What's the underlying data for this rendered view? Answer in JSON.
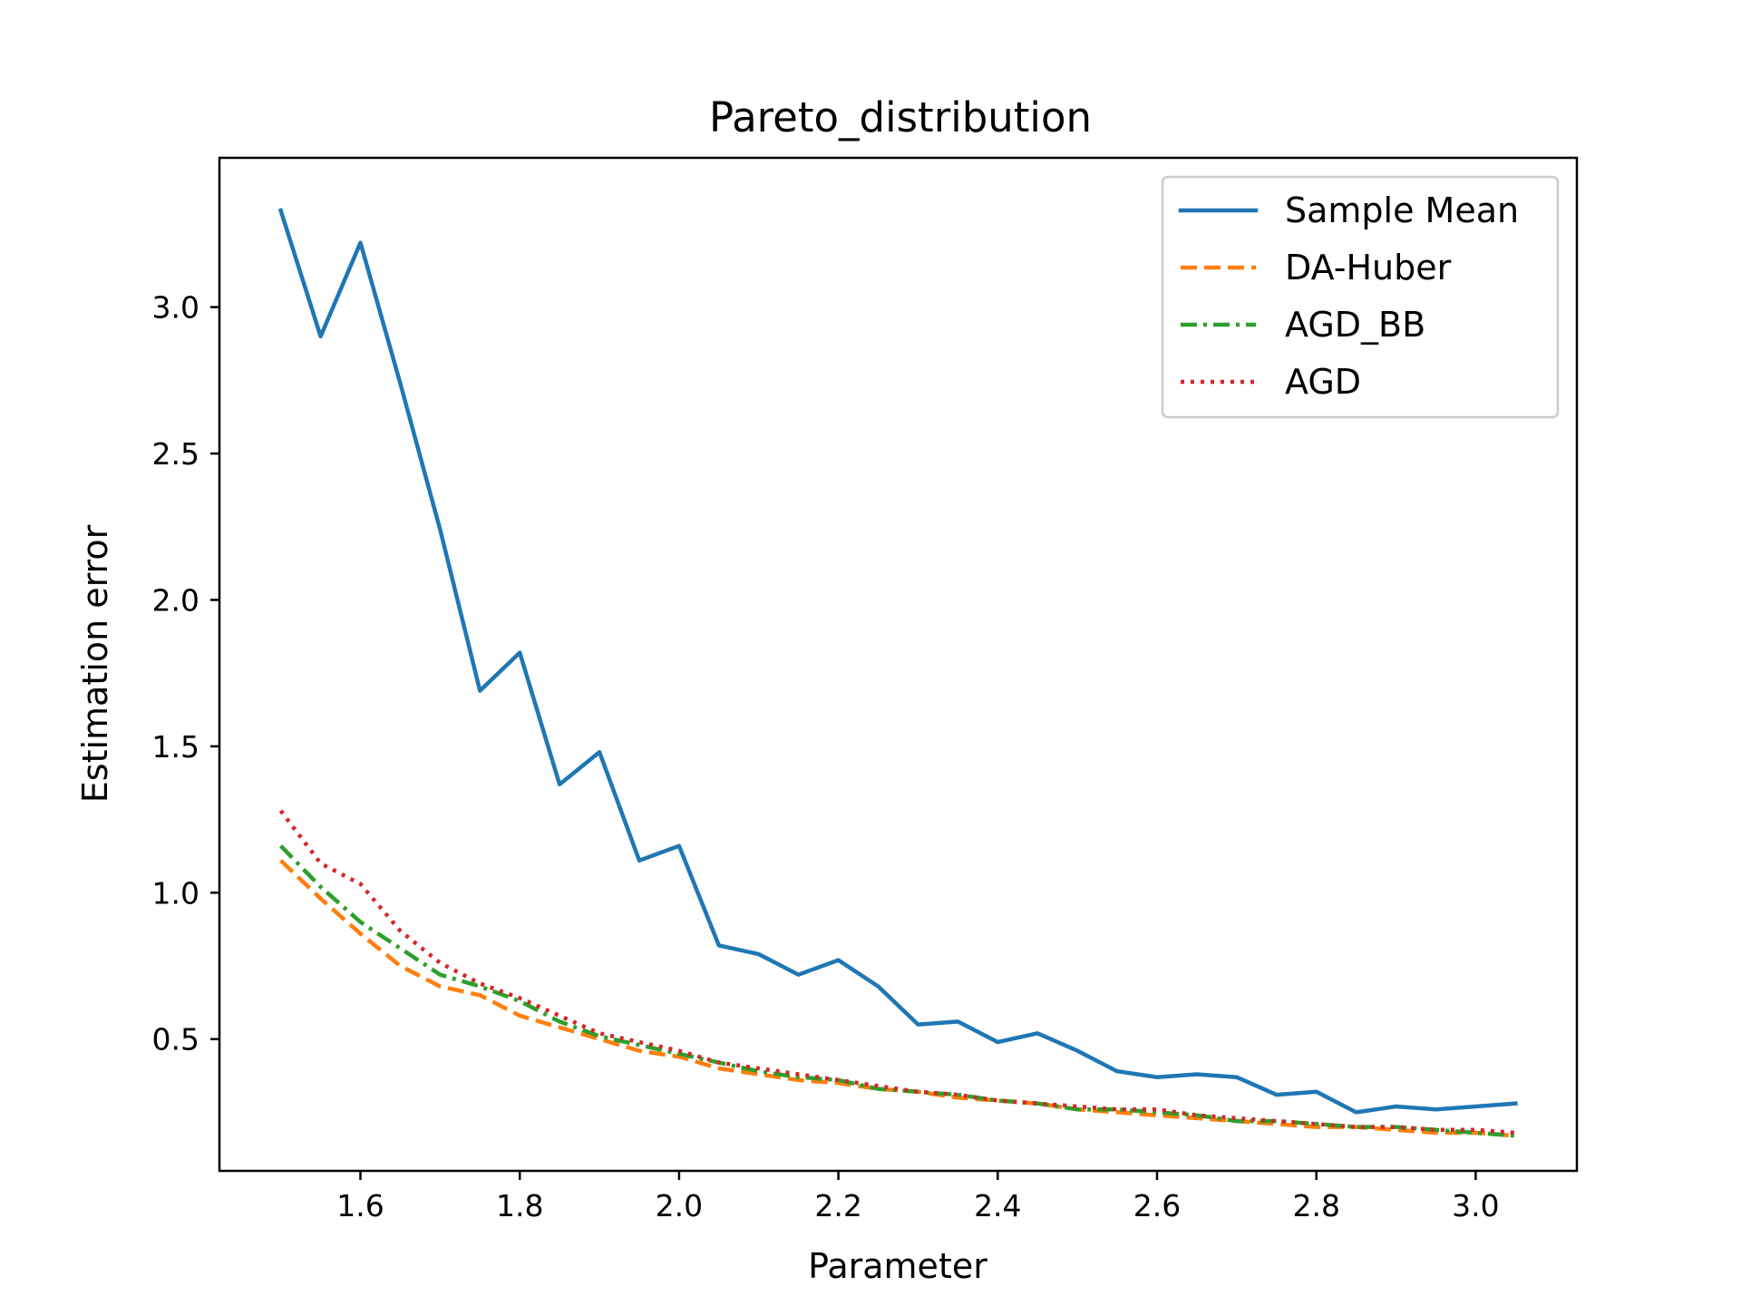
{
  "chart_data": {
    "type": "line",
    "title": "Pareto_distribution",
    "xlabel": "Parameter",
    "ylabel": "Estimation error",
    "xlim": [
      1.423,
      3.127
    ],
    "ylim": [
      0.05,
      3.51
    ],
    "xticks": [
      1.6,
      1.8,
      2.0,
      2.2,
      2.4,
      2.6,
      2.8,
      3.0
    ],
    "xtick_labels": [
      "1.6",
      "1.8",
      "2.0",
      "2.2",
      "2.4",
      "2.6",
      "2.8",
      "3.0"
    ],
    "yticks": [
      0.5,
      1.0,
      1.5,
      2.0,
      2.5,
      3.0
    ],
    "ytick_labels": [
      "0.5",
      "1.0",
      "1.5",
      "2.0",
      "2.5",
      "3.0"
    ],
    "grid": false,
    "legend_position": "top-right",
    "x": [
      1.5,
      1.55,
      1.6,
      1.65,
      1.7,
      1.75,
      1.8,
      1.85,
      1.9,
      1.95,
      2.0,
      2.05,
      2.1,
      2.15,
      2.2,
      2.25,
      2.3,
      2.35,
      2.4,
      2.45,
      2.5,
      2.55,
      2.6,
      2.65,
      2.7,
      2.75,
      2.8,
      2.85,
      2.9,
      2.95,
      3.0,
      3.05
    ],
    "series": [
      {
        "name": "Sample Mean",
        "color": "#1f77b4",
        "style": "solid",
        "values": [
          3.33,
          2.9,
          3.22,
          2.74,
          2.24,
          1.69,
          1.82,
          1.37,
          1.48,
          1.11,
          1.16,
          0.82,
          0.79,
          0.72,
          0.77,
          0.68,
          0.55,
          0.56,
          0.49,
          0.52,
          0.46,
          0.39,
          0.37,
          0.38,
          0.37,
          0.31,
          0.32,
          0.25,
          0.27,
          0.26,
          0.27,
          0.28
        ]
      },
      {
        "name": "DA-Huber",
        "color": "#ff7f0e",
        "style": "dashed",
        "values": [
          1.11,
          0.98,
          0.86,
          0.75,
          0.68,
          0.65,
          0.58,
          0.54,
          0.5,
          0.46,
          0.44,
          0.4,
          0.38,
          0.36,
          0.35,
          0.33,
          0.32,
          0.3,
          0.29,
          0.28,
          0.26,
          0.25,
          0.24,
          0.23,
          0.22,
          0.21,
          0.2,
          0.2,
          0.19,
          0.18,
          0.18,
          0.17
        ]
      },
      {
        "name": "AGD_BB",
        "color": "#2ca02c",
        "style": "dashdot",
        "values": [
          1.16,
          1.02,
          0.9,
          0.81,
          0.72,
          0.68,
          0.63,
          0.56,
          0.51,
          0.48,
          0.45,
          0.42,
          0.39,
          0.37,
          0.36,
          0.33,
          0.32,
          0.31,
          0.29,
          0.28,
          0.26,
          0.26,
          0.25,
          0.24,
          0.22,
          0.22,
          0.21,
          0.2,
          0.2,
          0.19,
          0.18,
          0.17
        ]
      },
      {
        "name": "AGD",
        "color": "#d62728",
        "style": "dotted",
        "values": [
          1.28,
          1.1,
          1.03,
          0.87,
          0.76,
          0.69,
          0.64,
          0.58,
          0.52,
          0.49,
          0.46,
          0.42,
          0.4,
          0.38,
          0.36,
          0.34,
          0.32,
          0.31,
          0.29,
          0.28,
          0.27,
          0.26,
          0.26,
          0.24,
          0.23,
          0.22,
          0.21,
          0.2,
          0.2,
          0.19,
          0.19,
          0.18
        ]
      }
    ]
  }
}
